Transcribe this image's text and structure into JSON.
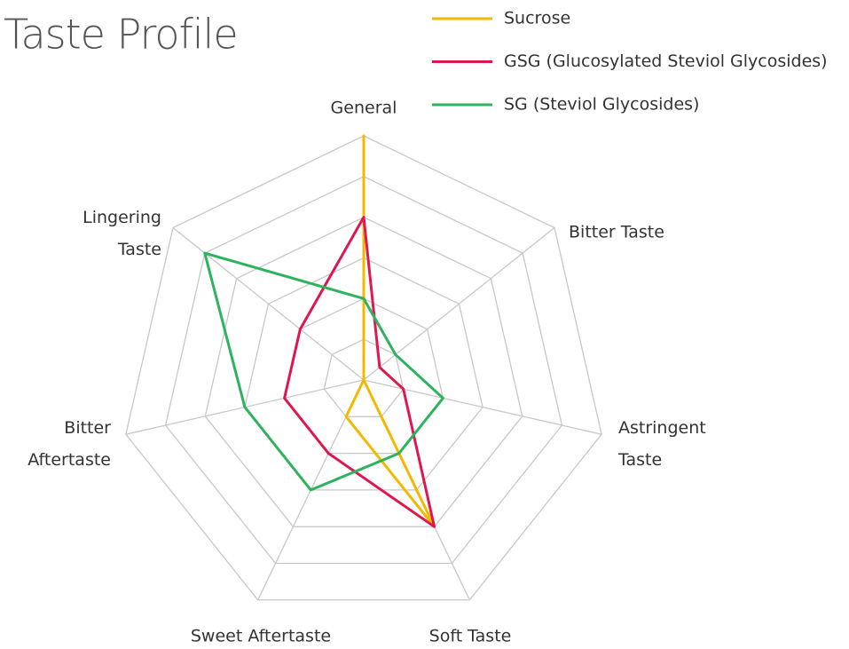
{
  "chart_data": {
    "type": "radar",
    "title": "Taste Profile",
    "categories": [
      "General",
      "Bitter Taste",
      "Astringent Taste",
      "Soft Taste",
      "Sweet Aftertaste",
      "Bitter Aftertaste",
      "Lingering Taste"
    ],
    "series": [
      {
        "name": "Sucrose",
        "color": "#f5b800",
        "values": [
          6,
          0,
          0,
          4,
          1,
          0,
          0
        ]
      },
      {
        "name": "GSG (Glucosylated Steviol Glycosides)",
        "color": "#e0174f",
        "values": [
          4,
          0.5,
          1,
          4,
          2,
          2,
          2
        ]
      },
      {
        "name": "SG (Steviol Glycosides)",
        "color": "#2db35d",
        "values": [
          2,
          1,
          2,
          2,
          3,
          3,
          5
        ]
      }
    ],
    "rlim": [
      0,
      6
    ],
    "rticks": [
      1,
      2,
      3,
      4,
      5,
      6
    ],
    "grid": true,
    "legend": "top-right"
  }
}
